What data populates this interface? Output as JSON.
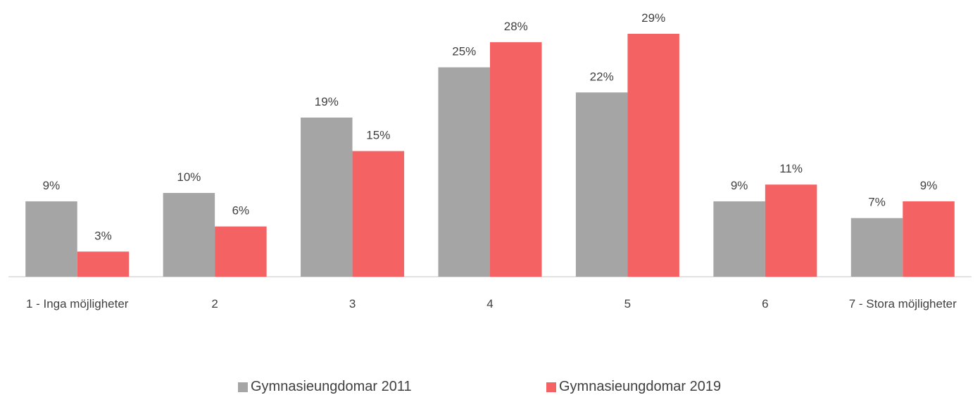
{
  "chart_data": {
    "type": "bar",
    "categories": [
      "1 - Inga möjligheter",
      "2",
      "3",
      "4",
      "5",
      "6",
      "7 - Stora möjligheter"
    ],
    "series": [
      {
        "name": "Gymnasieungdomar 2011",
        "color": "#a5a5a5",
        "values": [
          9,
          10,
          19,
          25,
          22,
          9,
          7
        ],
        "value_labels": [
          "9%",
          "10%",
          "19%",
          "25%",
          "22%",
          "9%",
          "7%"
        ]
      },
      {
        "name": "Gymnasieungdomar 2019",
        "color": "#f46264",
        "values": [
          3,
          6,
          15,
          28,
          29,
          11,
          9
        ],
        "value_labels": [
          "3%",
          "6%",
          "15%",
          "28%",
          "29%",
          "11%",
          "9%"
        ]
      }
    ],
    "legend": "bottom"
  }
}
